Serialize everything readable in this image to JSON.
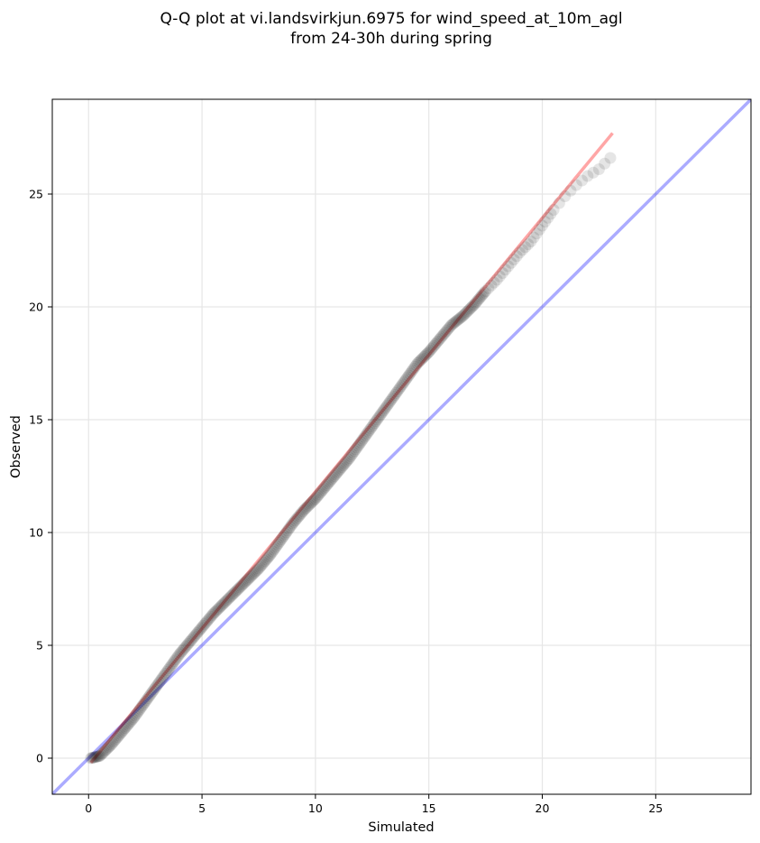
{
  "chart_data": {
    "type": "scatter",
    "title_lines": [
      "Q-Q plot at vi.landsvirkjun.6975 for wind_speed_at_10m_agl",
      "from 24-30h during spring"
    ],
    "xlabel": "Simulated",
    "ylabel": "Observed",
    "xlim": [
      -1.6,
      29.2
    ],
    "ylim": [
      -1.6,
      29.2
    ],
    "xticks": [
      0,
      5,
      10,
      15,
      20,
      25
    ],
    "yticks": [
      0,
      5,
      10,
      15,
      20,
      25
    ],
    "grid": true,
    "colors": {
      "points": "#000000",
      "reference_line": "#0000ff",
      "fit_line": "#ff0000"
    },
    "reference_line": {
      "slope": 1,
      "intercept": 0
    },
    "fit_line": {
      "x": [
        0.1,
        23.1
      ],
      "y": [
        -0.2,
        27.7
      ]
    },
    "quantiles": {
      "x": [
        0.1,
        0.5,
        1.0,
        1.5,
        2.0,
        2.5,
        3.0,
        3.5,
        4.0,
        4.5,
        5.0,
        5.5,
        6.0,
        6.5,
        7.0,
        7.5,
        8.0,
        8.5,
        9.0,
        9.5,
        10.0,
        10.5,
        11.0,
        11.5,
        12.0,
        12.5,
        13.0,
        13.5,
        14.0,
        14.5,
        15.0,
        15.5,
        16.0,
        16.5,
        17.0,
        17.5,
        18.0,
        18.5,
        19.0,
        19.5,
        20.0,
        20.5,
        21.0,
        21.5,
        22.0,
        22.5,
        23.0
      ],
      "y": [
        0.0,
        0.1,
        0.6,
        1.2,
        1.8,
        2.5,
        3.2,
        3.9,
        4.6,
        5.2,
        5.8,
        6.4,
        6.9,
        7.4,
        7.9,
        8.4,
        9.0,
        9.7,
        10.4,
        11.0,
        11.5,
        12.1,
        12.7,
        13.3,
        14.0,
        14.7,
        15.4,
        16.1,
        16.8,
        17.5,
        18.0,
        18.6,
        19.2,
        19.6,
        20.1,
        20.7,
        21.2,
        21.8,
        22.4,
        22.9,
        23.6,
        24.3,
        24.9,
        25.4,
        25.8,
        26.1,
        26.6
      ]
    }
  }
}
